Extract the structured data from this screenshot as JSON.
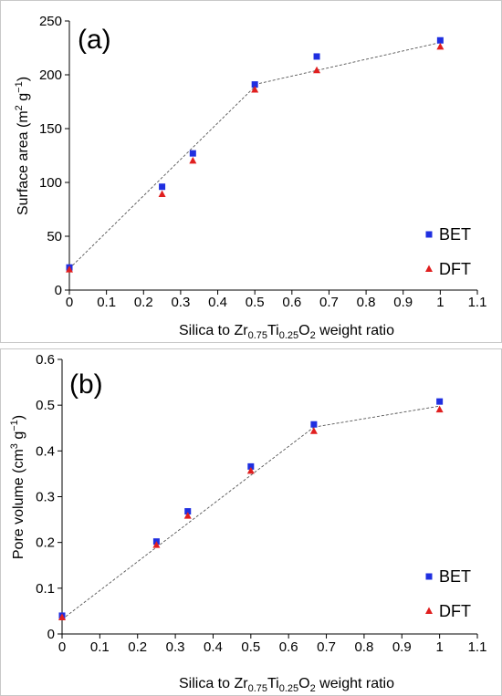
{
  "chart_data": [
    {
      "panel_label": "(a)",
      "type": "scatter",
      "xlabel": {
        "prefix": "Silica to Zr",
        "sub1": "0.75",
        "mid": "Ti",
        "sub2": "0.25",
        "mid2": "O",
        "sub3": "2",
        "suffix": " weight ratio"
      },
      "ylabel": {
        "prefix": "Surface area (m",
        "sup1": "2",
        "mid": " g",
        "sup2": "−1",
        "suffix": ")"
      },
      "xlim": [
        0,
        1.1
      ],
      "ylim": [
        0,
        250
      ],
      "xticks": [
        "0",
        "0.1",
        "0.2",
        "0.3",
        "0.4",
        "0.5",
        "0.6",
        "0.7",
        "0.8",
        "0.9",
        "1",
        "1.1"
      ],
      "yticks": [
        "0",
        "50",
        "100",
        "150",
        "200",
        "250"
      ],
      "legend_position": "bottom-right",
      "series": [
        {
          "name": "BET",
          "marker": "square",
          "color": "#1f2fe0",
          "x": [
            0,
            0.25,
            0.333,
            0.5,
            0.667,
            1.0
          ],
          "y": [
            21,
            96,
            127,
            191,
            217,
            232
          ]
        },
        {
          "name": "DFT",
          "marker": "triangle",
          "color": "#e01f1f",
          "x": [
            0,
            0.25,
            0.333,
            0.5,
            0.667,
            1.0
          ],
          "y": [
            19,
            89,
            120,
            186,
            204,
            226
          ]
        }
      ],
      "trend_lines": [
        {
          "x": [
            0,
            0.5
          ],
          "y": [
            20,
            189
          ]
        },
        {
          "x": [
            0.5,
            1.0
          ],
          "y": [
            191,
            230
          ]
        }
      ]
    },
    {
      "panel_label": "(b)",
      "type": "scatter",
      "xlabel": {
        "prefix": "Silica to Zr",
        "sub1": "0.75",
        "mid": "Ti",
        "sub2": "0.25",
        "mid2": "O",
        "sub3": "2",
        "suffix": " weight ratio"
      },
      "ylabel": {
        "prefix": "Pore volume (cm",
        "sup1": "3",
        "mid": " g",
        "sup2": "−1",
        "suffix": ")"
      },
      "xlim": [
        0,
        1.1
      ],
      "ylim": [
        0,
        0.6
      ],
      "xticks": [
        "0",
        "0.1",
        "0.2",
        "0.3",
        "0.4",
        "0.5",
        "0.6",
        "0.7",
        "0.8",
        "0.9",
        "1",
        "1.1"
      ],
      "yticks": [
        "0",
        "0.1",
        "0.2",
        "0.3",
        "0.4",
        "0.5",
        "0.6"
      ],
      "legend_position": "bottom-right",
      "series": [
        {
          "name": "BET",
          "marker": "square",
          "color": "#1f2fe0",
          "x": [
            0,
            0.25,
            0.333,
            0.5,
            0.667,
            1.0
          ],
          "y": [
            0.04,
            0.202,
            0.268,
            0.366,
            0.458,
            0.508
          ]
        },
        {
          "name": "DFT",
          "marker": "triangle",
          "color": "#e01f1f",
          "x": [
            0,
            0.25,
            0.333,
            0.5,
            0.667,
            1.0
          ],
          "y": [
            0.036,
            0.194,
            0.258,
            0.356,
            0.443,
            0.49
          ]
        }
      ],
      "trend_lines": [
        {
          "x": [
            0,
            0.667
          ],
          "y": [
            0.032,
            0.452
          ]
        },
        {
          "x": [
            0.667,
            1.0
          ],
          "y": [
            0.452,
            0.498
          ]
        }
      ]
    }
  ]
}
